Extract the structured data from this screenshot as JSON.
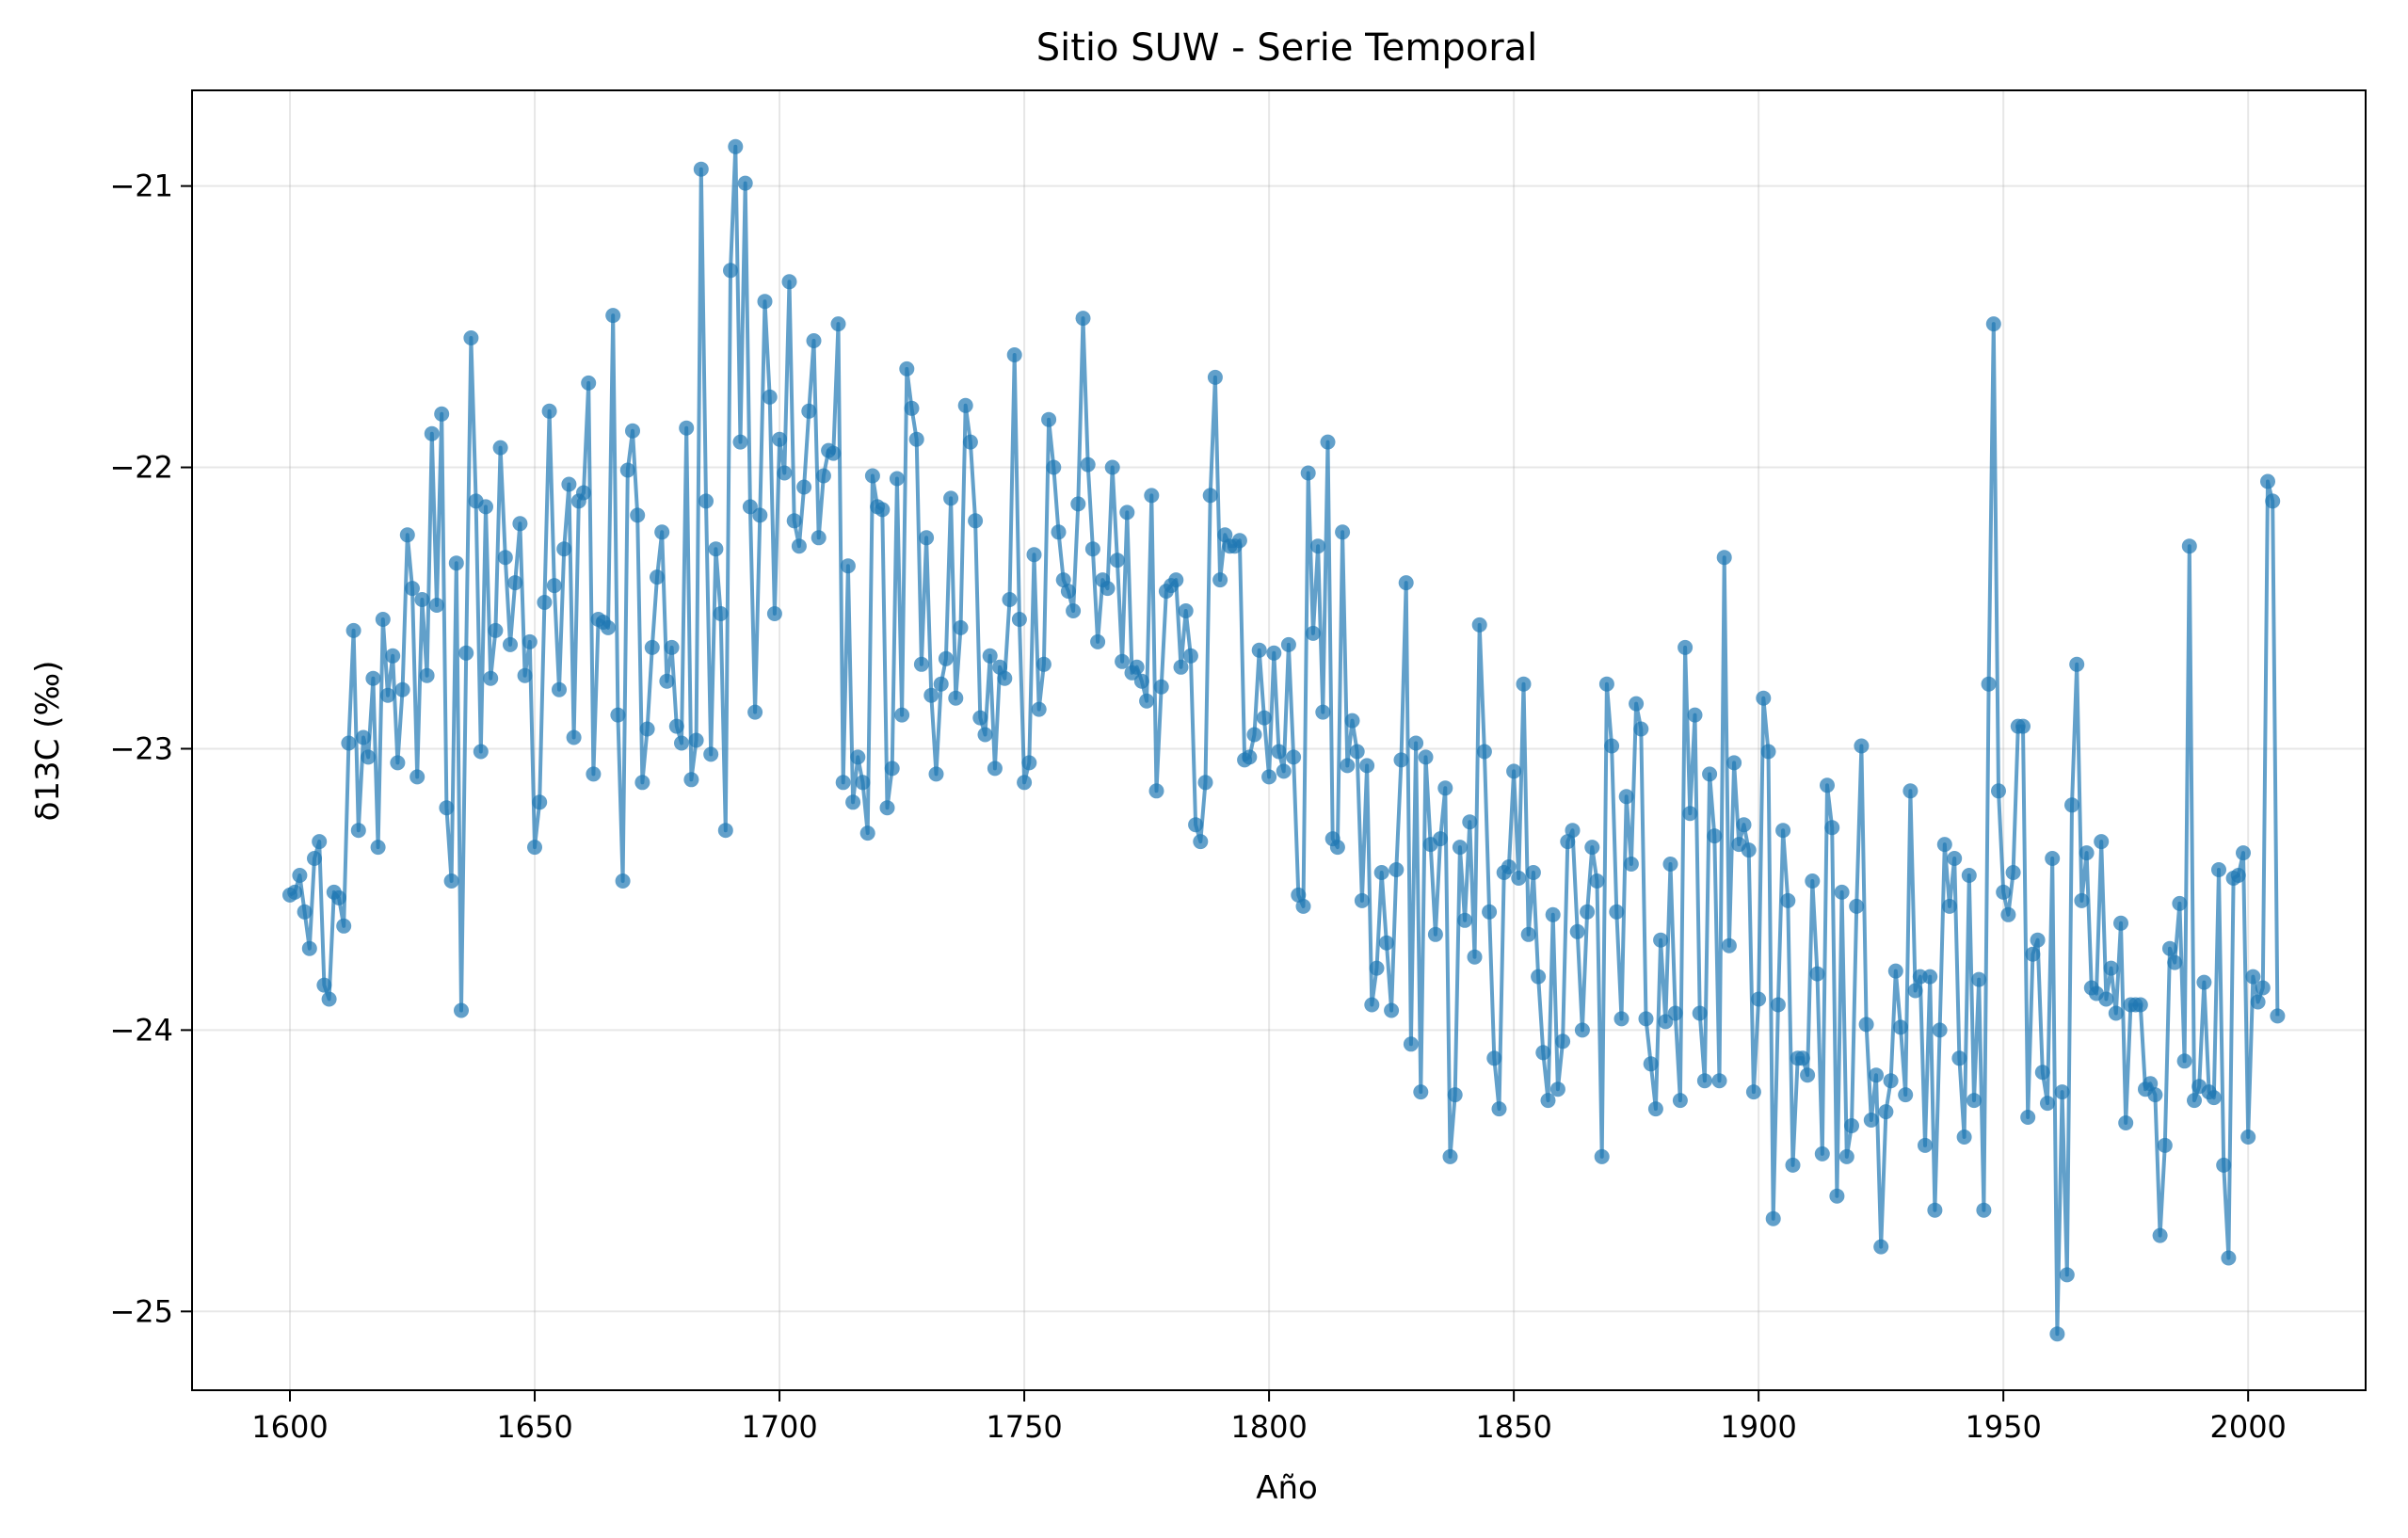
{
  "chart_data": {
    "type": "line",
    "title": "Sitio SUW  - Serie Temporal",
    "xlabel": "Año",
    "ylabel": "δ13C (‰)",
    "xlim": [
      1580,
      2024
    ],
    "ylim": [
      -25.28,
      -20.66
    ],
    "xticks": [
      1600,
      1650,
      1700,
      1750,
      1800,
      1850,
      1900,
      1950,
      2000
    ],
    "yticks": [
      -21,
      -22,
      -23,
      -24,
      -25
    ],
    "xtick_labels": [
      "1600",
      "1650",
      "1700",
      "1750",
      "1800",
      "1850",
      "1900",
      "1950",
      "2000"
    ],
    "ytick_labels": [
      "−21",
      "−22",
      "−23",
      "−24",
      "−25"
    ],
    "grid": true,
    "markers": true,
    "series": [
      {
        "color": "#1f77b4",
        "x_start": 1600,
        "x_step": 1,
        "y": [
          -23.52,
          -23.51,
          -23.45,
          -23.58,
          -23.71,
          -23.39,
          -23.33,
          -23.84,
          -23.89,
          -23.51,
          -23.53,
          -23.63,
          -22.98,
          -22.58,
          -23.29,
          -22.96,
          -23.03,
          -22.75,
          -23.35,
          -22.54,
          -22.81,
          -22.67,
          -23.05,
          -22.79,
          -22.24,
          -22.43,
          -23.1,
          -22.47,
          -22.74,
          -21.88,
          -22.49,
          -21.81,
          -23.21,
          -23.47,
          -22.34,
          -23.93,
          -22.66,
          -21.54,
          -22.12,
          -23.01,
          -22.14,
          -22.75,
          -22.58,
          -21.93,
          -22.32,
          -22.63,
          -22.41,
          -22.2,
          -22.74,
          -22.62,
          -23.35,
          -23.19,
          -22.48,
          -21.8,
          -22.42,
          -22.79,
          -22.29,
          -22.06,
          -22.96,
          -22.12,
          -22.09,
          -21.7,
          -23.09,
          -22.54,
          -22.55,
          -22.57,
          -21.46,
          -22.88,
          -23.47,
          -22.01,
          -21.87,
          -22.17,
          -23.12,
          -22.93,
          -22.64,
          -22.39,
          -22.23,
          -22.76,
          -22.64,
          -22.92,
          -22.98,
          -21.86,
          -23.11,
          -22.97,
          -20.94,
          -22.12,
          -23.02,
          -22.29,
          -22.52,
          -23.29,
          -21.3,
          -20.86,
          -21.91,
          -20.99,
          -22.14,
          -22.87,
          -22.17,
          -21.41,
          -21.75,
          -22.52,
          -21.9,
          -22.02,
          -21.34,
          -22.19,
          -22.28,
          -22.07,
          -21.8,
          -21.55,
          -22.25,
          -22.03,
          -21.94,
          -21.95,
          -21.49,
          -23.12,
          -22.35,
          -23.19,
          -23.03,
          -23.12,
          -23.3,
          -22.03,
          -22.14,
          -22.15,
          -23.21,
          -23.07,
          -22.04,
          -22.88,
          -21.65,
          -21.79,
          -21.9,
          -22.7,
          -22.25,
          -22.81,
          -23.09,
          -22.77,
          -22.68,
          -22.11,
          -22.82,
          -22.57,
          -21.78,
          -21.91,
          -22.19,
          -22.89,
          -22.95,
          -22.67,
          -23.07,
          -22.71,
          -22.75,
          -22.47,
          -21.6,
          -22.54,
          -23.12,
          -23.05,
          -22.31,
          -22.86,
          -22.7,
          -21.83,
          -22.0,
          -22.23,
          -22.4,
          -22.44,
          -22.51,
          -22.13,
          -21.47,
          -21.99,
          -22.29,
          -22.62,
          -22.4,
          -22.43,
          -22.0,
          -22.33,
          -22.69,
          -22.16,
          -22.73,
          -22.71,
          -22.76,
          -22.83,
          -22.1,
          -23.15,
          -22.78,
          -22.44,
          -22.42,
          -22.4,
          -22.71,
          -22.51,
          -22.67,
          -23.27,
          -23.33,
          -23.12,
          -22.1,
          -21.68,
          -22.4,
          -22.24,
          -22.28,
          -22.28,
          -22.26,
          -23.04,
          -23.03,
          -22.95,
          -22.65,
          -22.89,
          -23.1,
          -22.66,
          -23.01,
          -23.08,
          -22.63,
          -23.03,
          -23.52,
          -23.56,
          -22.02,
          -22.59,
          -22.28,
          -22.87,
          -21.91,
          -23.32,
          -23.35,
          -22.23,
          -23.06,
          -22.9,
          -23.01,
          -23.54,
          -23.06,
          -23.91,
          -23.78,
          -23.44,
          -23.69,
          -23.93,
          -23.43,
          -23.04,
          -22.41,
          -24.05,
          -22.98,
          -24.22,
          -23.03,
          -23.34,
          -23.66,
          -23.32,
          -23.14,
          -24.45,
          -24.23,
          -23.35,
          -23.61,
          -23.26,
          -23.74,
          -22.56,
          -23.01,
          -23.58,
          -24.1,
          -24.28,
          -23.44,
          -23.42,
          -23.08,
          -23.46,
          -22.77,
          -23.66,
          -23.44,
          -23.81,
          -24.08,
          -24.25,
          -23.59,
          -24.21,
          -24.04,
          -23.33,
          -23.29,
          -23.65,
          -24.0,
          -23.58,
          -23.35,
          -23.47,
          -24.45,
          -22.77,
          -22.99,
          -23.58,
          -23.96,
          -23.17,
          -23.41,
          -22.84,
          -22.93,
          -23.96,
          -24.12,
          -24.28,
          -23.68,
          -23.97,
          -23.41,
          -23.94,
          -24.25,
          -22.64,
          -23.23,
          -22.88,
          -23.94,
          -24.18,
          -23.09,
          -23.31,
          -24.18,
          -22.32,
          -23.7,
          -23.05,
          -23.34,
          -23.27,
          -23.36,
          -24.22,
          -23.89,
          -22.82,
          -23.01,
          -24.67,
          -23.91,
          -23.29,
          -23.54,
          -24.48,
          -24.1,
          -24.1,
          -24.16,
          -23.47,
          -23.8,
          -24.44,
          -23.13,
          -23.28,
          -24.59,
          -23.51,
          -24.45,
          -24.34,
          -23.56,
          -22.99,
          -23.98,
          -24.32,
          -24.16,
          -24.77,
          -24.29,
          -24.18,
          -23.79,
          -23.99,
          -24.23,
          -23.15,
          -23.86,
          -23.81,
          -24.41,
          -23.81,
          -24.64,
          -24.0,
          -23.34,
          -23.56,
          -23.39,
          -24.1,
          -24.38,
          -23.45,
          -24.25,
          -23.82,
          -24.64,
          -22.77,
          -21.49,
          -23.15,
          -23.51,
          -23.59,
          -23.44,
          -22.92,
          -22.92,
          -24.31,
          -23.73,
          -23.68,
          -24.15,
          -24.26,
          -23.39,
          -25.08,
          -24.22,
          -24.87,
          -23.2,
          -22.7,
          -23.54,
          -23.37,
          -23.85,
          -23.87,
          -23.33,
          -23.89,
          -23.78,
          -23.94,
          -23.62,
          -24.33,
          -23.91,
          -23.91,
          -23.91,
          -24.21,
          -24.19,
          -24.23,
          -24.73,
          -24.41,
          -23.71,
          -23.76,
          -23.55,
          -24.11,
          -22.28,
          -24.25,
          -24.2,
          -23.83,
          -24.22,
          -24.24,
          -23.43,
          -24.48,
          -24.81,
          -23.46,
          -23.45,
          -23.37,
          -24.38,
          -23.81,
          -23.9,
          -23.85,
          -22.05,
          -22.12,
          -23.95
        ]
      }
    ]
  }
}
